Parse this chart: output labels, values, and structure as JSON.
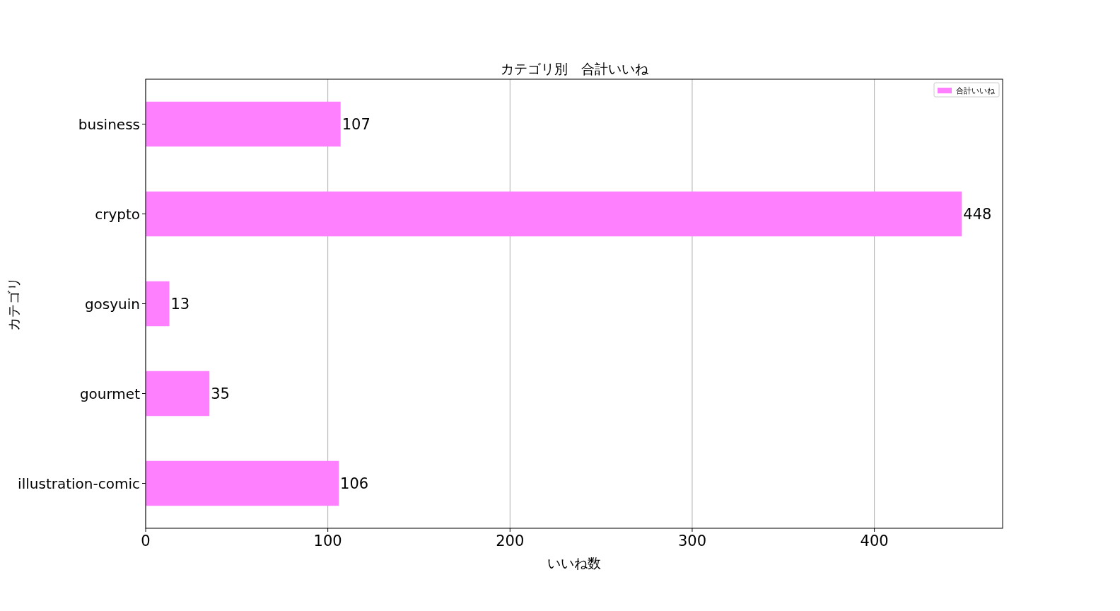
{
  "chart_data": {
    "type": "bar",
    "orientation": "horizontal",
    "title": "カテゴリ別　合計いいね",
    "xlabel": "いいね数",
    "ylabel": "カテゴリ",
    "categories": [
      "business",
      "crypto",
      "gosyuin",
      "gourmet",
      "illustration-comic"
    ],
    "series": [
      {
        "name": "合計いいね",
        "color": "#ff80ff",
        "values": [
          107,
          448,
          13,
          35,
          106
        ]
      }
    ],
    "xlim": [
      0,
      470.4
    ],
    "xticks": [
      0,
      100,
      200,
      300,
      400
    ],
    "grid": "x",
    "legend": "top right",
    "data_labels": true
  }
}
